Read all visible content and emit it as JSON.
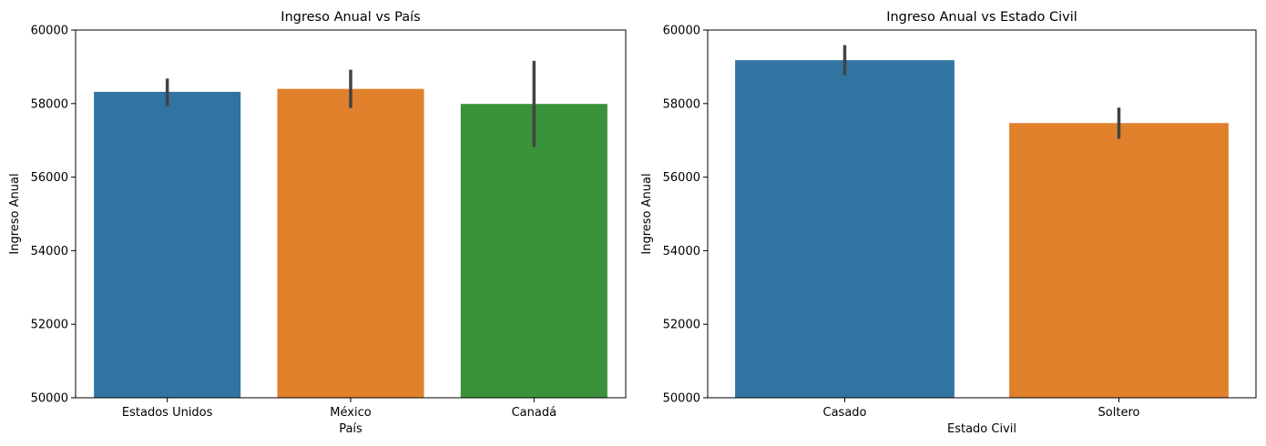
{
  "chart_data": [
    {
      "type": "bar",
      "title": "Ingreso Anual vs País",
      "xlabel": "País",
      "ylabel": "Ingreso Anual",
      "categories": [
        "Estados Unidos",
        "México",
        "Canadá"
      ],
      "values": [
        58320,
        58400,
        57990
      ],
      "error_low": [
        57930,
        57880,
        56820
      ],
      "error_high": [
        58680,
        58920,
        59160
      ],
      "colors": [
        "#3274a1",
        "#e1812c",
        "#3a923a"
      ],
      "ylim": [
        50000,
        60000
      ],
      "yticks": [
        50000,
        52000,
        54000,
        56000,
        58000,
        60000
      ],
      "grid": false
    },
    {
      "type": "bar",
      "title": "Ingreso Anual vs Estado Civil",
      "xlabel": "Estado Civil",
      "ylabel": "Ingreso Anual",
      "categories": [
        "Casado",
        "Soltero"
      ],
      "values": [
        59180,
        57470
      ],
      "error_low": [
        58770,
        57040
      ],
      "error_high": [
        59590,
        57890
      ],
      "colors": [
        "#3274a1",
        "#e1812c"
      ],
      "ylim": [
        50000,
        60000
      ],
      "yticks": [
        50000,
        52000,
        54000,
        56000,
        58000,
        60000
      ],
      "grid": false
    }
  ]
}
